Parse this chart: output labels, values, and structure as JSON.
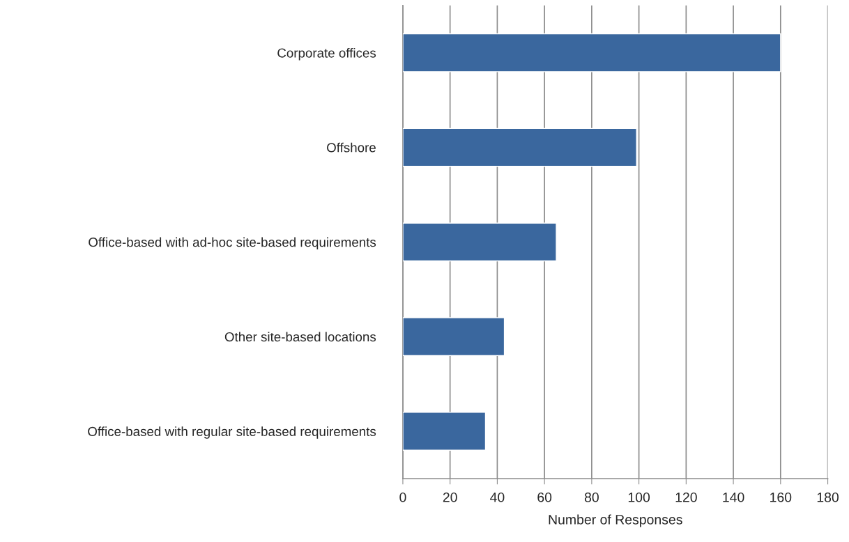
{
  "chart_data": {
    "type": "bar",
    "orientation": "horizontal",
    "xlabel": "Number of Responses",
    "categories": [
      "Corporate offices",
      "Offshore",
      "Office-based with ad-hoc site-based requirements",
      "Other site-based locations",
      "Office-based with regular site-based requirements"
    ],
    "values": [
      160,
      99,
      65,
      43,
      35
    ],
    "color": "#3a679e",
    "xlim": [
      0,
      180
    ],
    "xticks": [
      0,
      20,
      40,
      60,
      80,
      100,
      120,
      140,
      160,
      180
    ],
    "grid": "x"
  }
}
